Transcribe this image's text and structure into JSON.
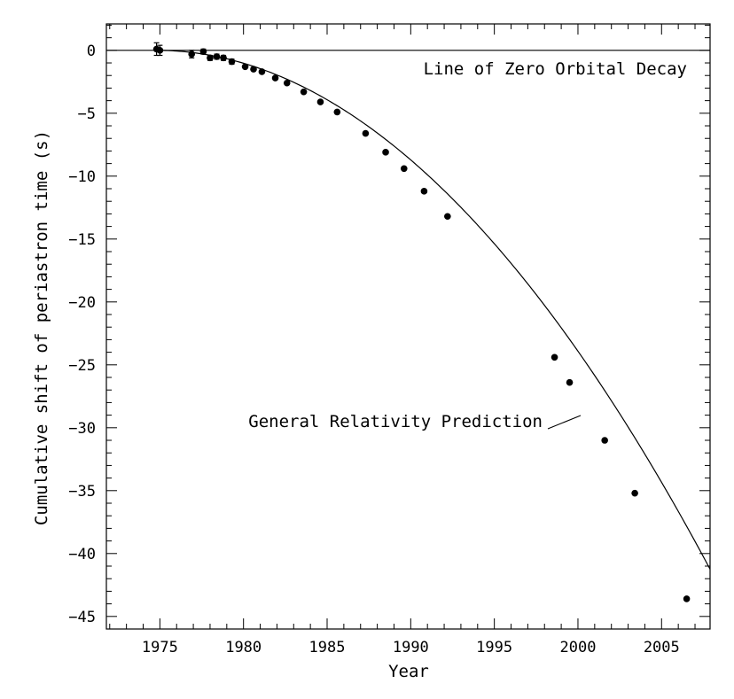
{
  "chart_data": {
    "type": "scatter",
    "xlabel": "Year",
    "ylabel": "Cumulative shift of periastron time (s)",
    "xlim": [
      1971.8,
      2007.9
    ],
    "ylim": [
      -46.0,
      2.1
    ],
    "x_ticks": [
      1975,
      1980,
      1985,
      1990,
      1995,
      2000,
      2005
    ],
    "x_tick_labels": [
      "1975",
      "1980",
      "1985",
      "1990",
      "1995",
      "2000",
      "2005"
    ],
    "y_ticks": [
      0,
      -5,
      -10,
      -15,
      -20,
      -25,
      -30,
      -35,
      -40,
      -45
    ],
    "y_tick_labels": [
      "0",
      "−5",
      "−10",
      "−15",
      "−20",
      "−25",
      "−30",
      "−35",
      "−40",
      "−45"
    ],
    "grid": false,
    "reference_line": {
      "label": "Line of Zero Orbital Decay",
      "y": 0
    },
    "curve": {
      "label": "General Relativity Prediction",
      "model": "quadratic",
      "x0": 1974.78,
      "coef": -0.0376,
      "x_range": [
        1974.78,
        2007.9
      ]
    },
    "series": [
      {
        "x": [
          1974.8,
          1975.0,
          1976.9,
          1977.6,
          1978.0,
          1978.4,
          1978.8,
          1979.3,
          1980.1,
          1980.6,
          1981.1,
          1981.9,
          1982.6,
          1983.6,
          1984.6,
          1985.6,
          1987.3,
          1988.5,
          1989.6,
          1990.8,
          1992.2,
          1998.6,
          1999.5,
          2001.6,
          2003.4,
          2006.5
        ],
        "y": [
          0.1,
          0.0,
          -0.3,
          -0.1,
          -0.6,
          -0.5,
          -0.6,
          -0.9,
          -1.3,
          -1.5,
          -1.7,
          -2.2,
          -2.6,
          -3.3,
          -4.1,
          -4.9,
          -6.6,
          -8.1,
          -9.4,
          -11.2,
          -13.2,
          -24.4,
          -26.4,
          -31.0,
          -35.2,
          -43.6
        ],
        "yerr": [
          0.5,
          0.4,
          0.3,
          0.2,
          0.2,
          0.2,
          0.2,
          0.2,
          0.1,
          0.1,
          0.1,
          0.1,
          0.1,
          0.1,
          0.1,
          0.1,
          0.1,
          0.1,
          0.1,
          0.1,
          0.1,
          0.1,
          0.1,
          0.1,
          0.1,
          0.1
        ]
      }
    ]
  }
}
